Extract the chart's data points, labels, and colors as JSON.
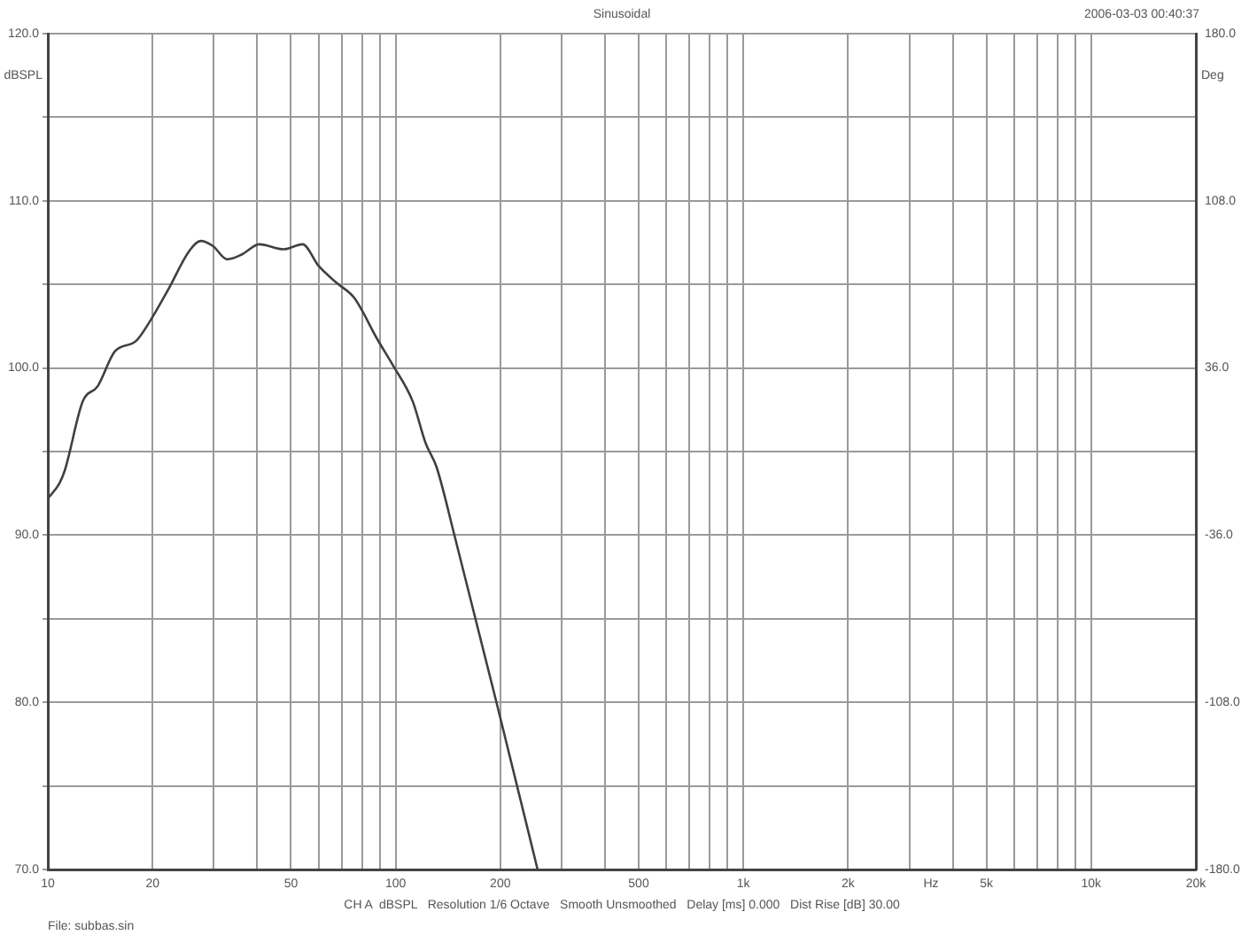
{
  "chart_data": {
    "type": "line",
    "title": "Sinusoidal",
    "xlabel": "Hz",
    "ylabel": "dBSPL",
    "y2label": "Deg",
    "annotations": [
      "2006-03-03 00:40:37",
      "CH A  dBSPL   Resolution 1/6 Octave   Smooth Unsmoothed   Delay [ms] 0.000   Dist Rise [dB] 30.00",
      "File: subbas.sin"
    ],
    "log": "x",
    "grid": true,
    "legend": false,
    "marker": "none",
    "line_style": "solid",
    "xlim": [
      10,
      20000
    ],
    "xticks": [
      10,
      20,
      {
        "value": 30,
        "label": null
      },
      {
        "value": 40,
        "label": null
      },
      50,
      {
        "value": 60,
        "label": null
      },
      {
        "value": 70,
        "label": null
      },
      {
        "value": 80,
        "label": null
      },
      {
        "value": 90,
        "label": null
      },
      100,
      200,
      {
        "value": 300,
        "label": null
      },
      {
        "value": 400,
        "label": null
      },
      500,
      {
        "value": 600,
        "label": null
      },
      {
        "value": 700,
        "label": null
      },
      {
        "value": 800,
        "label": null
      },
      {
        "value": 900,
        "label": null
      },
      {
        "value": 1000,
        "label": "1k"
      },
      {
        "value": 2000,
        "label": "2k"
      },
      {
        "value": 3000,
        "label": null
      },
      {
        "value": 4000,
        "label": null
      },
      {
        "value": 5000,
        "label": "5k"
      },
      {
        "value": 6000,
        "label": null
      },
      {
        "value": 7000,
        "label": null
      },
      {
        "value": 8000,
        "label": null
      },
      {
        "value": 9000,
        "label": null
      },
      {
        "value": 10000,
        "label": "10k"
      },
      {
        "value": 20000,
        "label": "20k"
      }
    ],
    "ylim": [
      70,
      120
    ],
    "yticks": [
      {
        "value": 70,
        "label": "70.0"
      },
      {
        "value": 75,
        "label": null
      },
      {
        "value": 80,
        "label": "80.0"
      },
      {
        "value": 85,
        "label": null
      },
      {
        "value": 90,
        "label": "90.0"
      },
      {
        "value": 95,
        "label": null
      },
      {
        "value": 100,
        "label": "100.0"
      },
      {
        "value": 105,
        "label": null
      },
      {
        "value": 110,
        "label": "110.0"
      },
      {
        "value": 115,
        "label": null
      },
      {
        "value": 120,
        "label": "120.0"
      }
    ],
    "y2lim": [
      -180,
      180
    ],
    "y2ticks": [
      {
        "value": -180,
        "label": "-180.0"
      },
      {
        "value": -108,
        "label": "-108.0"
      },
      {
        "value": -36,
        "label": "-36.0"
      },
      {
        "value": 36,
        "label": "36.0"
      },
      {
        "value": 108,
        "label": "108.0"
      },
      {
        "value": 180,
        "label": "180.0"
      }
    ],
    "series": [
      {
        "color": "#404040",
        "x": [
          10,
          10.8,
          11.2,
          12.6,
          13.9,
          15.6,
          17.9,
          19.8,
          22.2,
          25.5,
          27.5,
          29.8,
          32.8,
          36.2,
          40.6,
          47.6,
          54,
          60.1,
          67.6,
          76,
          88.7,
          98,
          112,
          122,
          131,
          148,
          195,
          256
        ],
        "values": [
          92.2,
          93.1,
          93.9,
          98.0,
          98.9,
          101.0,
          101.6,
          102.9,
          104.7,
          107.0,
          107.6,
          107.3,
          106.5,
          106.8,
          107.4,
          107.1,
          107.4,
          106.1,
          105.1,
          104.2,
          101.7,
          100.2,
          98.0,
          95.5,
          94.1,
          89.9,
          80.0,
          70.0
        ]
      }
    ]
  }
}
